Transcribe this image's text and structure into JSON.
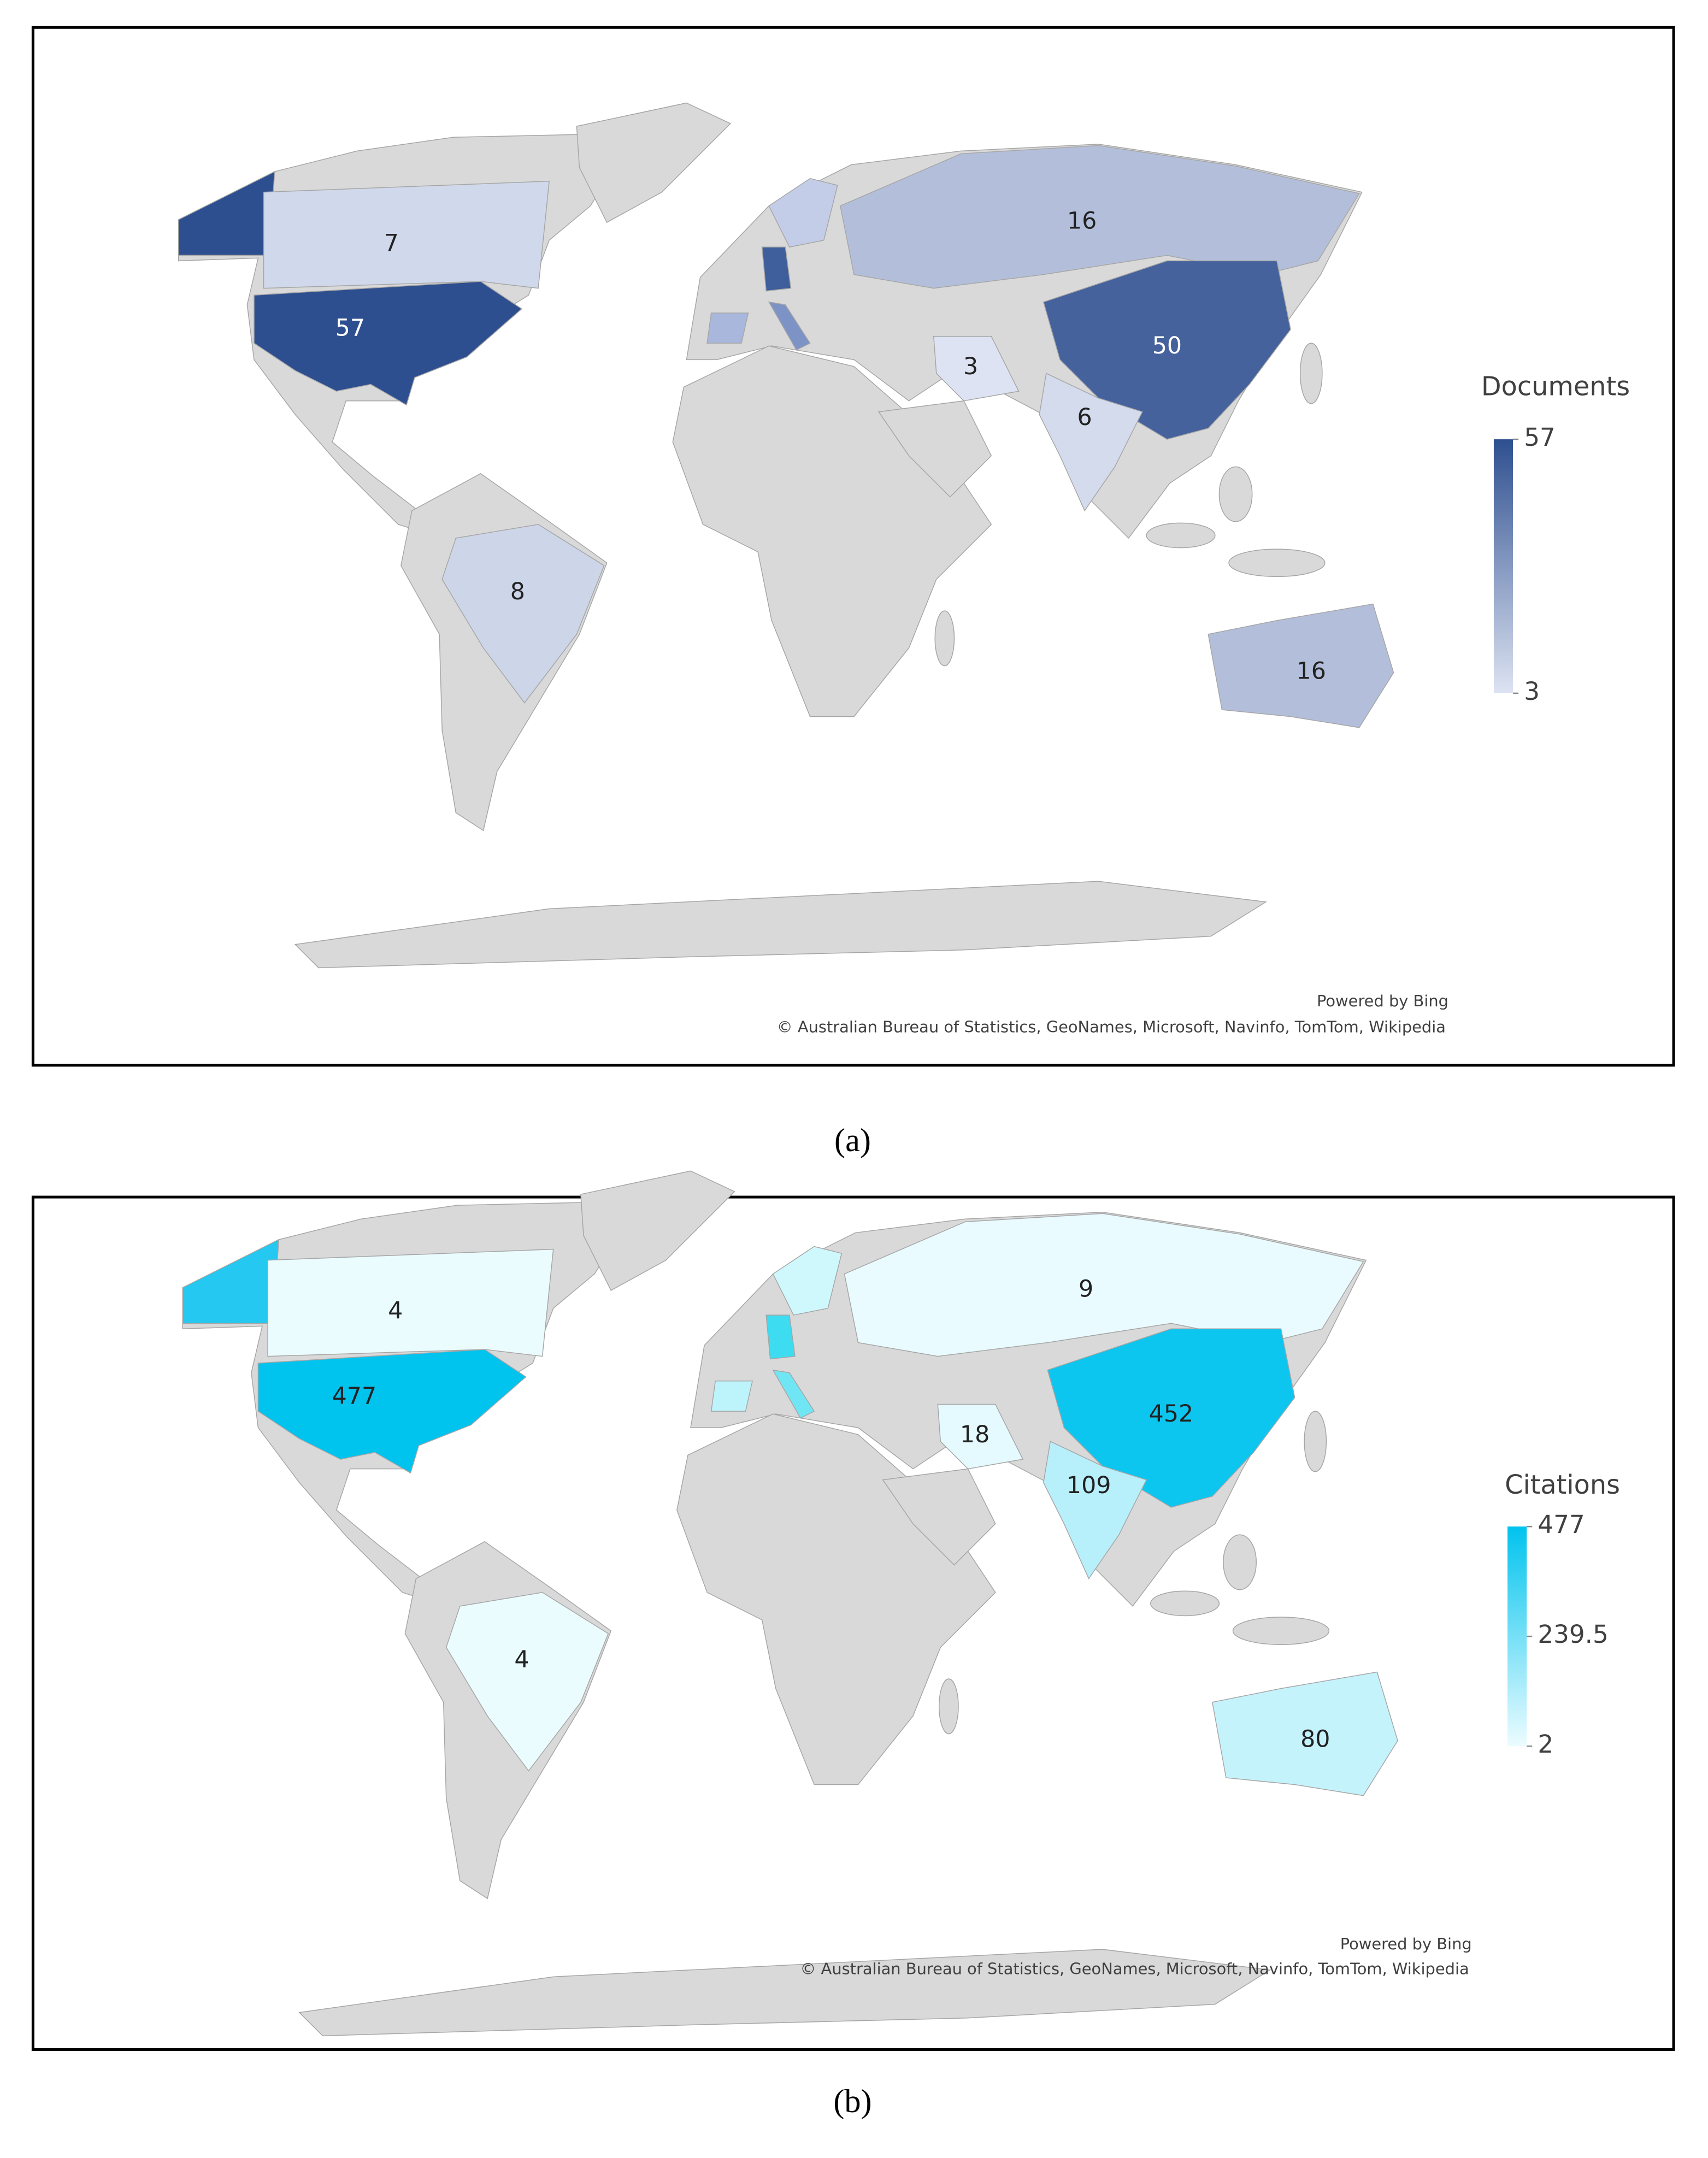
{
  "maps": [
    {
      "caption": "(a)",
      "legend": {
        "title": "Documents",
        "ticks": [
          57,
          3
        ],
        "colors": [
          "#dde3f2",
          "#2e4f8f"
        ]
      },
      "labels": [
        7,
        57,
        16,
        50,
        3,
        6,
        8,
        16
      ],
      "attribution": [
        "Powered by Bing",
        "© Australian Bureau of Statistics, GeoNames, Microsoft, Navinfo, TomTom, Wikipedia"
      ]
    },
    {
      "caption": "(b)",
      "legend": {
        "title": "Citations",
        "ticks": [
          477,
          239.5,
          2
        ],
        "colors": [
          "#ecfcff",
          "#00c3ee"
        ]
      },
      "labels": [
        4,
        477,
        9,
        452,
        18,
        109,
        4,
        80
      ],
      "attribution": [
        "Powered by Bing",
        "© Australian Bureau of Statistics, GeoNames, Microsoft, Navinfo, TomTom, Wikipedia"
      ]
    }
  ]
}
